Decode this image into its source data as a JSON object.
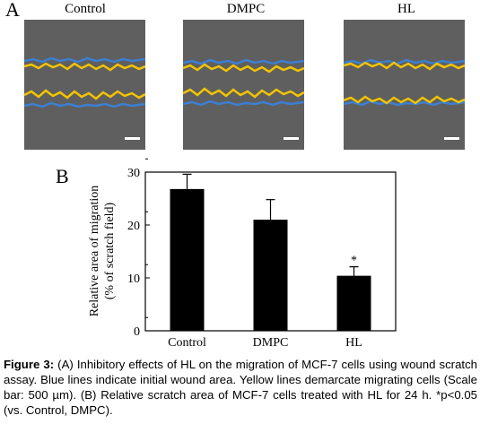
{
  "panel_a": {
    "letter": "A",
    "images": [
      {
        "label": "Control"
      },
      {
        "label": "DMPC"
      },
      {
        "label": "HL"
      }
    ],
    "colors": {
      "initial_line": "#3d7fd1",
      "migrating_line": "#f2c400",
      "background": "#5f5f5f",
      "scale_bar": "#ffffff"
    }
  },
  "panel_b": {
    "letter": "B"
  },
  "chart_data": {
    "type": "bar",
    "categories": [
      "Control",
      "DMPC",
      "HL"
    ],
    "values": [
      26.8,
      21.0,
      10.4
    ],
    "errors": [
      2.8,
      3.8,
      1.7
    ],
    "significance": [
      "",
      "",
      "*"
    ],
    "ylabel_lines": [
      "Relative  area of migration",
      "(% of scratch field)"
    ],
    "ylim": [
      0,
      30
    ],
    "yticks": [
      0,
      10,
      20,
      30
    ],
    "bar_color": "#000000"
  },
  "caption": {
    "label": "Figure 3:",
    "text": " (A) Inhibitory effects of HL on the migration of MCF-7 cells using wound scratch assay. Blue lines indicate initial wound area. Yellow lines demarcate migrating cells (Scale bar: 500 µm). (B) Relative scratch area of MCF-7 cells treated with HL for 24 h. *p<0.05 (vs. Control, DMPC)."
  }
}
